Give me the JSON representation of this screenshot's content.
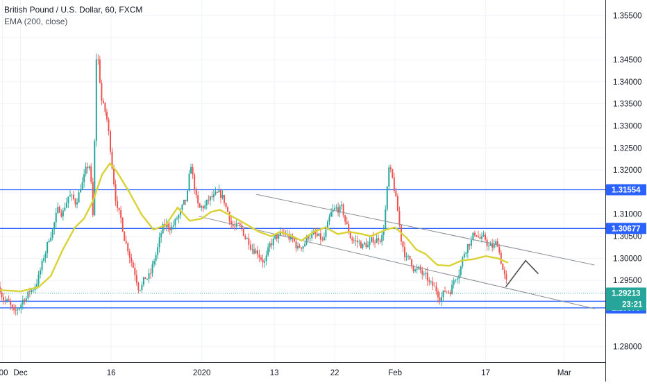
{
  "legend": {
    "title": "British Pound / U.S. Dollar, 60, FXCM",
    "indicator": "EMA (200, close)"
  },
  "chart_data": {
    "type": "candlestick",
    "title": "British Pound / U.S. Dollar, 60, FXCM",
    "indicator": "EMA (200, close)",
    "grid": true,
    "ylim": [
      1.2765,
      1.3585
    ],
    "y_ticks": [
      1.355,
      1.345,
      1.34,
      1.335,
      1.33,
      1.325,
      1.32,
      1.31,
      1.305,
      1.3,
      1.295,
      1.28
    ],
    "x_ticks": [
      ":00",
      "Dec",
      "16",
      "2020",
      "13",
      "22",
      "Feb",
      "17",
      "Mar"
    ],
    "x_tick_days": [
      -3,
      0,
      15,
      30,
      42,
      52,
      62,
      77,
      90
    ],
    "xlim_days": [
      -3.4,
      96.8
    ],
    "price_path": [
      [
        -3.4,
        1.2935
      ],
      [
        -2,
        1.29
      ],
      [
        -1,
        1.286
      ],
      [
        0.5,
        1.291
      ],
      [
        2,
        1.293
      ],
      [
        3.5,
        1.298
      ],
      [
        5,
        1.306
      ],
      [
        6,
        1.31
      ],
      [
        7,
        1.311
      ],
      [
        8,
        1.315
      ],
      [
        9,
        1.312
      ],
      [
        10,
        1.317
      ],
      [
        11.5,
        1.321
      ],
      [
        12,
        1.308
      ],
      [
        12.6,
        1.348
      ],
      [
        13.4,
        1.336
      ],
      [
        14.3,
        1.331
      ],
      [
        15.2,
        1.321
      ],
      [
        16,
        1.312
      ],
      [
        17,
        1.306
      ],
      [
        18,
        1.302
      ],
      [
        19.5,
        1.295
      ],
      [
        21.5,
        1.296
      ],
      [
        23.5,
        1.306
      ],
      [
        25.5,
        1.308
      ],
      [
        27.5,
        1.312
      ],
      [
        28.2,
        1.32
      ],
      [
        29.5,
        1.31
      ],
      [
        31.5,
        1.313
      ],
      [
        33.5,
        1.313
      ],
      [
        35,
        1.308
      ],
      [
        37,
        1.305
      ],
      [
        39,
        1.303
      ],
      [
        40.5,
        1.3
      ],
      [
        42,
        1.304
      ],
      [
        44,
        1.305
      ],
      [
        46,
        1.302
      ],
      [
        48,
        1.306
      ],
      [
        50,
        1.303
      ],
      [
        51.5,
        1.309
      ],
      [
        53,
        1.311
      ],
      [
        54.5,
        1.305
      ],
      [
        56.5,
        1.303
      ],
      [
        58,
        1.303
      ],
      [
        60,
        1.306
      ],
      [
        61,
        1.32
      ],
      [
        62,
        1.314
      ],
      [
        63,
        1.304
      ],
      [
        64,
        1.3
      ],
      [
        66,
        1.297
      ],
      [
        68,
        1.293
      ],
      [
        69,
        1.292
      ],
      [
        71,
        1.293
      ],
      [
        72.5,
        1.298
      ],
      [
        74,
        1.304
      ],
      [
        75.5,
        1.306
      ],
      [
        76.5,
        1.304
      ],
      [
        78,
        1.302
      ],
      [
        79,
        1.303
      ],
      [
        80,
        1.297
      ],
      [
        80.7,
        1.2922
      ]
    ],
    "ema_200": [
      [
        -3.4,
        1.2928
      ],
      [
        0,
        1.2925
      ],
      [
        3,
        1.2935
      ],
      [
        5,
        1.296
      ],
      [
        7,
        1.302
      ],
      [
        9,
        1.307
      ],
      [
        10.5,
        1.309
      ],
      [
        12,
        1.313
      ],
      [
        13.5,
        1.319
      ],
      [
        14.8,
        1.3215
      ],
      [
        16,
        1.3195
      ],
      [
        18,
        1.315
      ],
      [
        20,
        1.31
      ],
      [
        22,
        1.3065
      ],
      [
        24,
        1.3075
      ],
      [
        26,
        1.3115
      ],
      [
        28,
        1.3085
      ],
      [
        30,
        1.309
      ],
      [
        31.5,
        1.3105
      ],
      [
        33,
        1.311
      ],
      [
        35,
        1.3095
      ],
      [
        37,
        1.308
      ],
      [
        39.5,
        1.306
      ],
      [
        41.5,
        1.305
      ],
      [
        43,
        1.306
      ],
      [
        45,
        1.305
      ],
      [
        46.5,
        1.304
      ],
      [
        48.5,
        1.306
      ],
      [
        50.5,
        1.307
      ],
      [
        52.5,
        1.3055
      ],
      [
        54.5,
        1.306
      ],
      [
        56.5,
        1.3055
      ],
      [
        58,
        1.305
      ],
      [
        60.5,
        1.3065
      ],
      [
        62,
        1.307
      ],
      [
        64,
        1.3045
      ],
      [
        65.5,
        1.302
      ],
      [
        67,
        1.301
      ],
      [
        69,
        1.2985
      ],
      [
        71,
        1.2983
      ],
      [
        73,
        1.2995
      ],
      [
        75,
        1.2998
      ],
      [
        77,
        1.3005
      ],
      [
        79,
        1.3
      ],
      [
        80.7,
        1.299
      ]
    ],
    "horizontal_levels": [
      {
        "price": 1.31554,
        "label": "1.31554",
        "kind": "level"
      },
      {
        "price": 1.30677,
        "label": "1.30677",
        "kind": "level"
      },
      {
        "price": 1.29029,
        "label": "1.29029",
        "kind": "level"
      },
      {
        "price": 1.28878,
        "label": "1.28878",
        "kind": "level"
      },
      {
        "price": 1.29213,
        "label": "1.29213",
        "kind": "current"
      }
    ],
    "countdown_label": "23:21",
    "channel_lines": [
      {
        "from": [
          39,
          1.3145
        ],
        "to": [
          95,
          1.2985
        ]
      },
      {
        "from": [
          29.5,
          1.3095
        ],
        "to": [
          95,
          1.2886
        ]
      }
    ],
    "projection_arrow": [
      [
        80.3,
        1.2935
      ],
      [
        83.6,
        1.2995
      ],
      [
        85.7,
        1.2965
      ]
    ],
    "colors": {
      "up": "#26a69a",
      "down": "#ef5350",
      "ema": "#d9d234",
      "level": "#2962ff",
      "current_price": "#26a69a",
      "channel": "#8a8d93",
      "arrow": "#4a4a4a"
    }
  }
}
